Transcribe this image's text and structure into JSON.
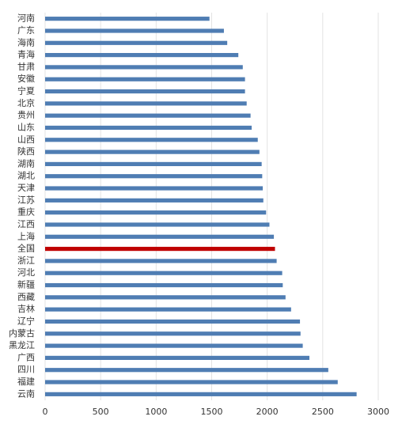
{
  "chart_data": {
    "type": "hbar",
    "categories": [
      "河南",
      "广东",
      "海南",
      "青海",
      "甘肃",
      "安徽",
      "宁夏",
      "北京",
      "贵州",
      "山东",
      "山西",
      "陕西",
      "湖南",
      "湖北",
      "天津",
      "江苏",
      "重庆",
      "江西",
      "上海",
      "全国",
      "浙江",
      "河北",
      "新疆",
      "西藏",
      "吉林",
      "辽宁",
      "内蒙古",
      "黑龙江",
      "广西",
      "四川",
      "福建",
      "云南"
    ],
    "values": [
      1480,
      1610,
      1640,
      1740,
      1780,
      1800,
      1800,
      1815,
      1850,
      1860,
      1915,
      1930,
      1950,
      1955,
      1960,
      1965,
      1990,
      2020,
      2060,
      2070,
      2085,
      2135,
      2140,
      2165,
      2215,
      2295,
      2300,
      2320,
      2380,
      2550,
      2635,
      2805
    ],
    "colors": [
      "#4f7db3",
      "#4f7db3",
      "#4f7db3",
      "#4f7db3",
      "#4f7db3",
      "#4f7db3",
      "#4f7db3",
      "#4f7db3",
      "#4f7db3",
      "#4f7db3",
      "#4f7db3",
      "#4f7db3",
      "#4f7db3",
      "#4f7db3",
      "#4f7db3",
      "#4f7db3",
      "#4f7db3",
      "#4f7db3",
      "#4f7db3",
      "#c00000",
      "#4f7db3",
      "#4f7db3",
      "#4f7db3",
      "#4f7db3",
      "#4f7db3",
      "#4f7db3",
      "#4f7db3",
      "#4f7db3",
      "#4f7db3",
      "#4f7db3",
      "#4f7db3",
      "#4f7db3"
    ],
    "xlim": [
      0,
      3000
    ],
    "xticks": [
      0,
      500,
      1000,
      1500,
      2000,
      2500,
      3000
    ],
    "grid": true
  }
}
